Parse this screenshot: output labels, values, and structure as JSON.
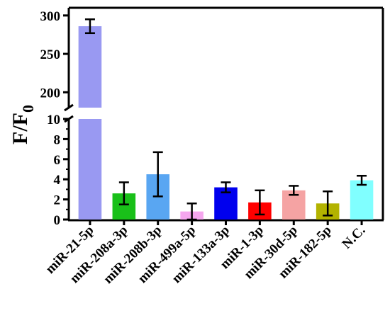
{
  "chart_data": {
    "type": "bar",
    "ylabel": "F/F",
    "ylabel_subscript": "0",
    "broken_axis": true,
    "ylim_lower": [
      0,
      10
    ],
    "ylim_upper": [
      180,
      310
    ],
    "yticks_lower": [
      "0",
      "2",
      "4",
      "6",
      "8",
      "10"
    ],
    "yticks_upper": [
      "200",
      "250",
      "300"
    ],
    "categories": [
      "miR-21-5p",
      "miR-208a-3p",
      "miR-208b-3p",
      "miR-499a-5p",
      "miR-133a-3p",
      "miR-1-3p",
      "miR-30d-5p",
      "miR-182-5p",
      "N.C."
    ],
    "values": [
      286,
      2.6,
      4.5,
      0.8,
      3.2,
      1.7,
      2.9,
      1.6,
      3.9
    ],
    "errors": [
      9,
      1.1,
      2.2,
      0.8,
      0.5,
      1.2,
      0.45,
      1.2,
      0.45
    ],
    "colors": [
      "#9999f2",
      "#19c019",
      "#59a6f2",
      "#f5a6ee",
      "#0000ee",
      "#ff0000",
      "#f5a3a3",
      "#b3b300",
      "#80ffff"
    ]
  }
}
